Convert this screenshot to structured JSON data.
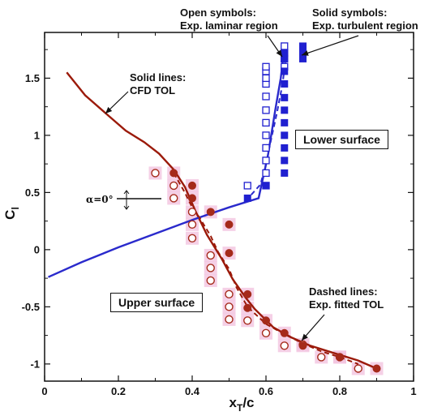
{
  "chart_data": {
    "type": "scatter",
    "xlabel_main": "x",
    "xlabel_sub": "T",
    "xlabel_tail": "/c",
    "ylabel_main": "C",
    "ylabel_sub": "l",
    "xlim": [
      0,
      1
    ],
    "ylim": [
      -1.15,
      1.9
    ],
    "xticks": [
      "0",
      "0.2",
      "0.4",
      "0.6",
      "0.8",
      "1"
    ],
    "xtick_values": [
      0,
      0.2,
      0.4,
      0.6,
      0.8,
      1
    ],
    "yticks": [
      "-1",
      "-0.5",
      "0",
      "0.5",
      "1",
      "1.5"
    ],
    "ytick_values": [
      -1,
      -0.5,
      0,
      0.5,
      1,
      1.5
    ],
    "grid": false,
    "colors": {
      "upper": "#a52a1a",
      "lower": "#2020d0",
      "halo": "#f2c4e0",
      "line_cfd_upper": "#9b1a0a",
      "line_cfd_lower": "#2a2acc"
    },
    "annotations": {
      "open_symbols_1": "Open symbols:",
      "open_symbols_2": "Exp. laminar region",
      "solid_symbols_1": "Solid symbols:",
      "solid_symbols_2": "Exp. turbulent region",
      "solid_lines_1": "Solid lines:",
      "solid_lines_2": "CFD TOL",
      "lower_surface": "Lower surface",
      "upper_surface": "Upper surface",
      "dashed_lines_1": "Dashed lines:",
      "dashed_lines_2": "Exp. fitted TOL",
      "alpha": "α=0°"
    },
    "series": [
      {
        "name": "CFD TOL upper surface",
        "kind": "solid-line",
        "color": "#9b1a0a",
        "x": [
          0.06,
          0.11,
          0.17,
          0.22,
          0.27,
          0.31,
          0.35,
          0.38,
          0.41,
          0.44,
          0.48,
          0.51,
          0.545,
          0.57,
          0.62,
          0.67,
          0.72,
          0.78,
          0.85,
          0.9
        ],
        "y": [
          1.55,
          1.35,
          1.18,
          1.04,
          0.94,
          0.84,
          0.7,
          0.55,
          0.33,
          0.13,
          -0.08,
          -0.26,
          -0.42,
          -0.52,
          -0.68,
          -0.77,
          -0.84,
          -0.9,
          -0.97,
          -1.04
        ]
      },
      {
        "name": "CFD TOL lower surface",
        "kind": "solid-line",
        "color": "#2a2acc",
        "x": [
          0.01,
          0.1,
          0.2,
          0.3,
          0.4,
          0.5,
          0.58,
          0.605,
          0.625,
          0.64,
          0.65
        ],
        "y": [
          -0.24,
          -0.11,
          0.02,
          0.14,
          0.26,
          0.37,
          0.45,
          0.82,
          1.22,
          1.5,
          1.77
        ]
      },
      {
        "name": "Exp. fitted TOL upper surface",
        "kind": "dashed-line",
        "color": "#9b1a0a",
        "x": [
          0.35,
          0.38,
          0.4,
          0.42,
          0.45,
          0.47,
          0.5,
          0.52,
          0.55,
          0.6,
          0.65,
          0.7,
          0.75,
          0.8,
          0.85
        ],
        "y": [
          0.67,
          0.5,
          0.37,
          0.28,
          0.12,
          -0.02,
          -0.17,
          -0.33,
          -0.5,
          -0.65,
          -0.74,
          -0.82,
          -0.89,
          -0.94,
          -1.0
        ]
      },
      {
        "name": "Exp. fitted TOL lower surface",
        "kind": "dashed-line",
        "color": "#2a2acc",
        "x": [
          0.56,
          0.585,
          0.6,
          0.615,
          0.63,
          0.645,
          0.655
        ],
        "y": [
          0.48,
          0.57,
          0.75,
          0.98,
          1.2,
          1.45,
          1.72
        ]
      },
      {
        "name": "Upper surface laminar",
        "kind": "open-circle",
        "color": "#a52a1a",
        "x": [
          0.3,
          0.35,
          0.35,
          0.4,
          0.4,
          0.4,
          0.45,
          0.45,
          0.45,
          0.5,
          0.5,
          0.5,
          0.55,
          0.6,
          0.65,
          0.7,
          0.75,
          0.8,
          0.85
        ],
        "y": [
          0.67,
          0.56,
          0.45,
          0.33,
          0.22,
          0.1,
          -0.05,
          -0.16,
          -0.27,
          -0.39,
          -0.5,
          -0.61,
          -0.62,
          -0.73,
          -0.84,
          -0.83,
          -0.94,
          -0.94,
          -1.04
        ]
      },
      {
        "name": "Upper surface turbulent",
        "kind": "filled-circle",
        "color": "#a52a1a",
        "x": [
          0.35,
          0.4,
          0.4,
          0.45,
          0.5,
          0.5,
          0.55,
          0.55,
          0.6,
          0.65,
          0.7,
          0.8,
          0.9
        ],
        "y": [
          0.67,
          0.56,
          0.45,
          0.33,
          0.22,
          -0.03,
          -0.39,
          -0.51,
          -0.62,
          -0.73,
          -0.84,
          -0.94,
          -1.04
        ]
      },
      {
        "name": "Lower surface laminar",
        "kind": "open-square",
        "color": "#2020d0",
        "x": [
          0.55,
          0.6,
          0.6,
          0.6,
          0.6,
          0.6,
          0.6,
          0.6,
          0.6,
          0.6,
          0.6,
          0.6,
          0.6,
          0.65,
          0.65,
          0.65,
          0.65
        ],
        "y": [
          0.56,
          0.56,
          0.67,
          0.78,
          0.89,
          1.0,
          1.11,
          1.22,
          1.34,
          1.45,
          1.56,
          1.6,
          1.5,
          1.6,
          1.67,
          1.72,
          1.78
        ]
      },
      {
        "name": "Lower surface turbulent",
        "kind": "filled-square",
        "color": "#2020d0",
        "x": [
          0.55,
          0.6,
          0.65,
          0.65,
          0.65,
          0.65,
          0.65,
          0.65,
          0.65,
          0.65,
          0.65,
          0.65,
          0.65,
          0.7,
          0.7,
          0.7,
          0.7
        ],
        "y": [
          0.45,
          0.56,
          0.67,
          0.78,
          0.89,
          1.0,
          1.11,
          1.22,
          1.33,
          1.45,
          1.56,
          1.67,
          1.72,
          1.67,
          1.72,
          1.75,
          1.78
        ]
      }
    ]
  }
}
